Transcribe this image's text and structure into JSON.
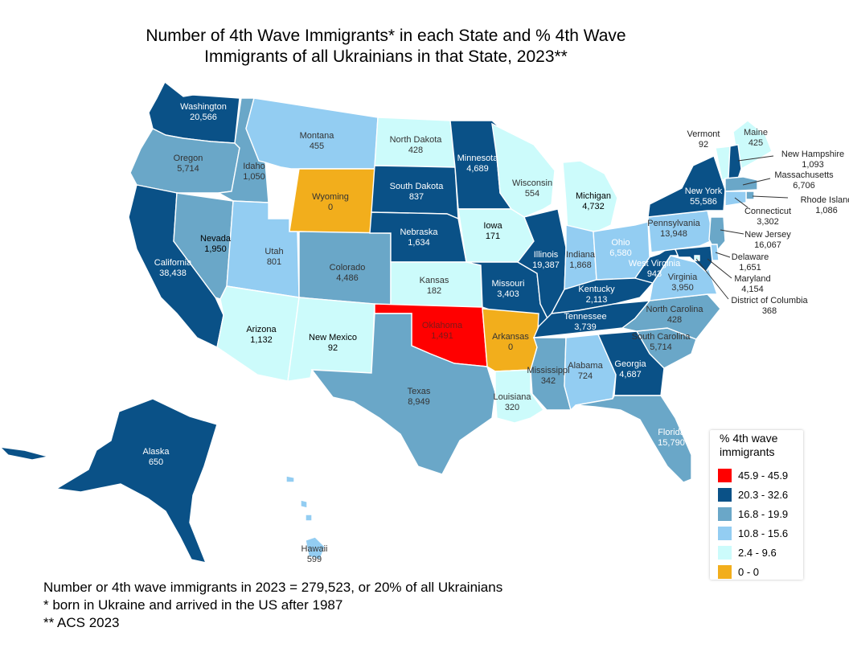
{
  "title_line1": "Number of 4th Wave Immigrants* in each State and % 4th Wave",
  "title_line2": "Immigrants of all Ukrainians in that State, 2023**",
  "legend": {
    "title_line1": "% 4th wave",
    "title_line2": "immigrants",
    "items": [
      {
        "label": "45.9 - 45.9",
        "color": "#ff0000"
      },
      {
        "label": "20.3 - 32.6",
        "color": "#0a5187"
      },
      {
        "label": "16.8 - 19.9",
        "color": "#6aa7c8"
      },
      {
        "label": "10.8 - 15.6",
        "color": "#93cdf2"
      },
      {
        "label": "2.4 - 9.6",
        "color": "#ccfbfb"
      },
      {
        "label": "0 - 0",
        "color": "#f2ae1c"
      }
    ]
  },
  "notes": {
    "line1": "Number or 4th wave immigrants in 2023 = 279,523, or 20% of all Ukrainians",
    "line2": "* born in Ukraine and arrived in the US after 1987",
    "line3": "** ACS 2023"
  },
  "states": [
    {
      "name": "Washington",
      "value": "20,566",
      "class": 1
    },
    {
      "name": "Oregon",
      "value": "5,714",
      "class": 2
    },
    {
      "name": "California",
      "value": "38,438",
      "class": 1
    },
    {
      "name": "Nevada",
      "value": "1,950",
      "class": 2
    },
    {
      "name": "Idaho",
      "value": "1,050",
      "class": 2
    },
    {
      "name": "Montana",
      "value": "455",
      "class": 3
    },
    {
      "name": "Wyoming",
      "value": "0",
      "class": 5
    },
    {
      "name": "Utah",
      "value": "801",
      "class": 3
    },
    {
      "name": "Colorado",
      "value": "4,486",
      "class": 2
    },
    {
      "name": "Arizona",
      "value": "1,132",
      "class": 4
    },
    {
      "name": "New Mexico",
      "value": "92",
      "class": 4
    },
    {
      "name": "North Dakota",
      "value": "428",
      "class": 4
    },
    {
      "name": "South Dakota",
      "value": "837",
      "class": 1
    },
    {
      "name": "Nebraska",
      "value": "1,634",
      "class": 1
    },
    {
      "name": "Kansas",
      "value": "182",
      "class": 4
    },
    {
      "name": "Oklahoma",
      "value": "1,491",
      "class": 0
    },
    {
      "name": "Texas",
      "value": "8,949",
      "class": 2
    },
    {
      "name": "Minnesota",
      "value": "4,689",
      "class": 1
    },
    {
      "name": "Iowa",
      "value": "171",
      "class": 4
    },
    {
      "name": "Missouri",
      "value": "3,403",
      "class": 1
    },
    {
      "name": "Arkansas",
      "value": "0",
      "class": 5
    },
    {
      "name": "Louisiana",
      "value": "320",
      "class": 4
    },
    {
      "name": "Wisconsin",
      "value": "554",
      "class": 4
    },
    {
      "name": "Illinois",
      "value": "19,387",
      "class": 1
    },
    {
      "name": "Michigan",
      "value": "4,732",
      "class": 4
    },
    {
      "name": "Indiana",
      "value": "1,868",
      "class": 3
    },
    {
      "name": "Ohio",
      "value": "6,580",
      "class": 3
    },
    {
      "name": "Kentucky",
      "value": "2,113",
      "class": 1
    },
    {
      "name": "Tennessee",
      "value": "3,739",
      "class": 1
    },
    {
      "name": "Mississippi",
      "value": "342",
      "class": 2
    },
    {
      "name": "Alabama",
      "value": "724",
      "class": 3
    },
    {
      "name": "Georgia",
      "value": "4,687",
      "class": 1
    },
    {
      "name": "Florida",
      "value": "15,790",
      "class": 2
    },
    {
      "name": "South Carolina",
      "value": "5,714",
      "class": 2
    },
    {
      "name": "North Carolina",
      "value": "428",
      "class": 2
    },
    {
      "name": "Virginia",
      "value": "3,950",
      "class": 3
    },
    {
      "name": "West Virginia",
      "value": "943",
      "class": 1
    },
    {
      "name": "Pennsylvania",
      "value": "13,948",
      "class": 3
    },
    {
      "name": "New York",
      "value": "55,586",
      "class": 1
    },
    {
      "name": "Vermont",
      "value": "92",
      "class": 4
    },
    {
      "name": "Maine",
      "value": "425",
      "class": 4
    },
    {
      "name": "New Hampshire",
      "value": "1,093",
      "class": 1
    },
    {
      "name": "Massachusetts",
      "value": "6,706",
      "class": 2
    },
    {
      "name": "Rhode Island",
      "value": "1,086",
      "class": 2
    },
    {
      "name": "Connecticut",
      "value": "3,302",
      "class": 3
    },
    {
      "name": "New Jersey",
      "value": "16,067",
      "class": 2
    },
    {
      "name": "Delaware",
      "value": "1,651",
      "class": 3
    },
    {
      "name": "Maryland",
      "value": "4,154",
      "class": 1
    },
    {
      "name": "District of Columbia",
      "value": "368",
      "class": 4
    },
    {
      "name": "Alaska",
      "value": "650",
      "class": 1
    },
    {
      "name": "Hawaii",
      "value": "599",
      "class": 3
    }
  ]
}
